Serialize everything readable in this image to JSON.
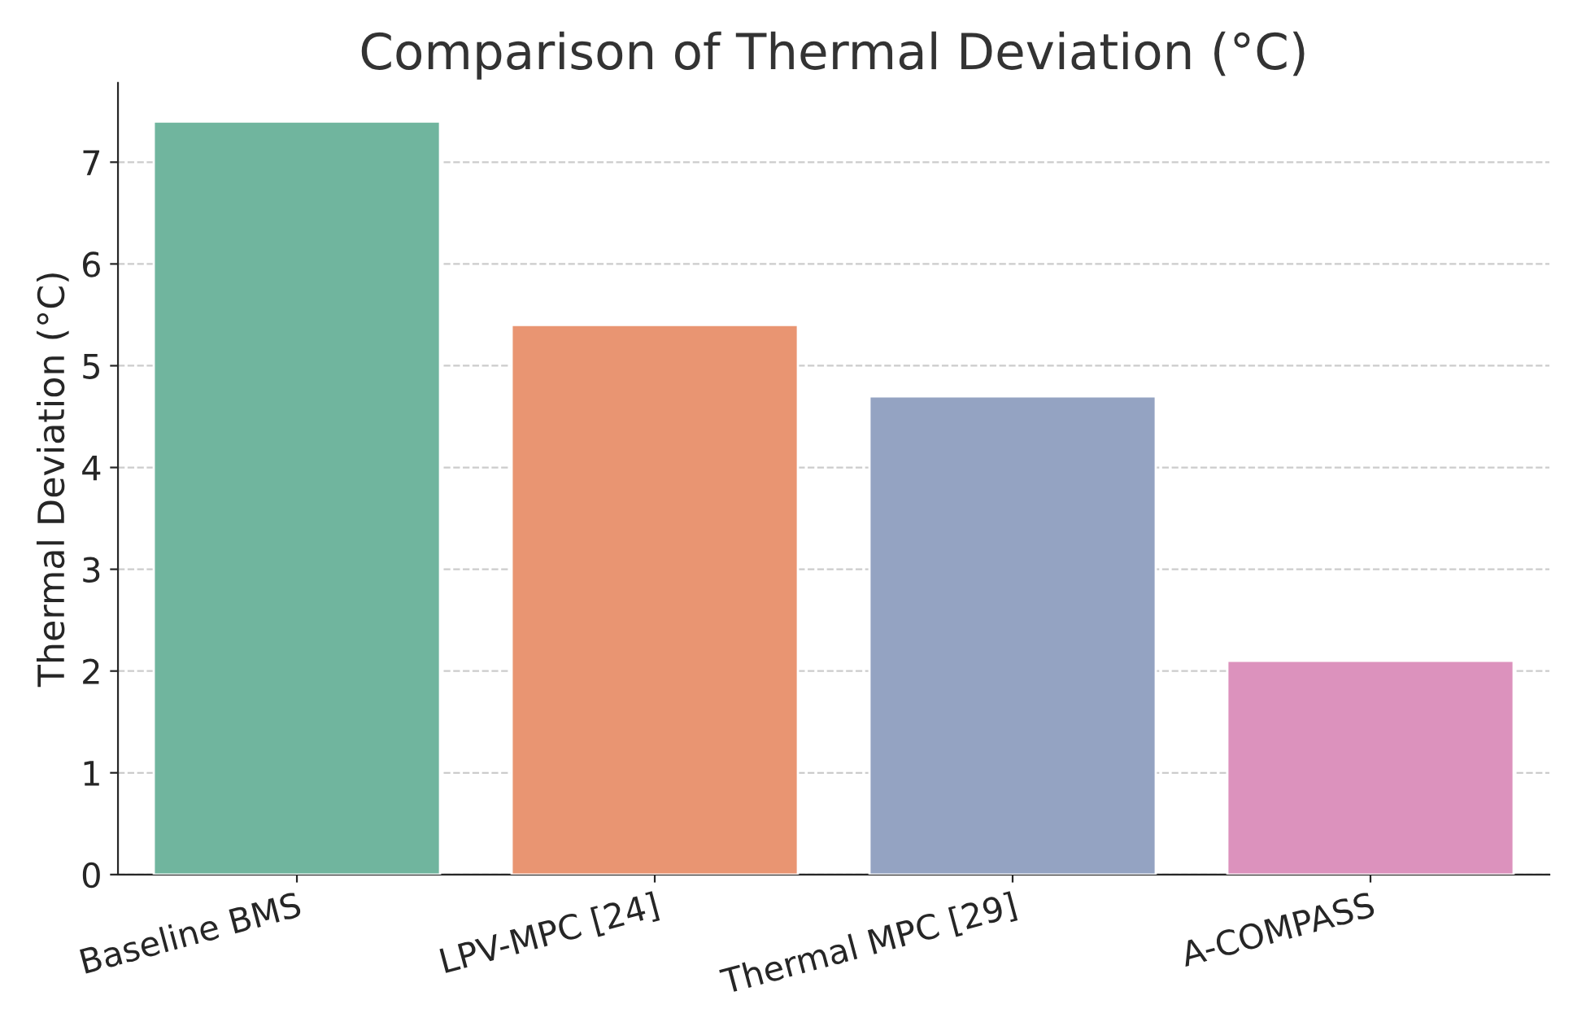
{
  "chart_data": {
    "type": "bar",
    "title": "Comparison of Thermal Deviation (°C)",
    "ylabel": "Thermal Deviation (°C)",
    "categories": [
      "Baseline BMS",
      "LPV-MPC [24]",
      "Thermal MPC [29]",
      "A-COMPASS"
    ],
    "values": [
      7.4,
      5.4,
      4.7,
      2.1
    ],
    "colors": [
      "#70b59e",
      "#e99572",
      "#94a3c2",
      "#dc92bd"
    ],
    "ylim": [
      0,
      7.78
    ],
    "yticks": [
      0,
      1,
      2,
      3,
      4,
      5,
      6,
      7
    ],
    "grid": "y",
    "legend": false
  }
}
